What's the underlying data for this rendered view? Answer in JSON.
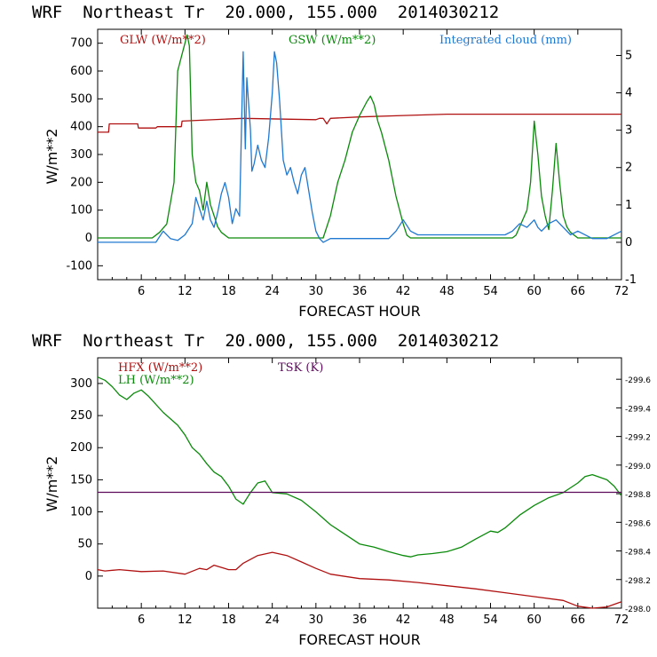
{
  "chart_data": [
    {
      "type": "line",
      "title": "WRF  Northeast Tr  20.000, 155.000  2014030212",
      "xlabel": "FORECAST HOUR",
      "ylabel": "W/m**2",
      "xlim": [
        0,
        72
      ],
      "ylim": [
        -150,
        750
      ],
      "y2lim": [
        -1,
        5.7
      ],
      "x_ticks": [
        6,
        12,
        18,
        24,
        30,
        36,
        42,
        48,
        54,
        60,
        66,
        72
      ],
      "y_ticks": [
        -100,
        0,
        100,
        200,
        300,
        400,
        500,
        600,
        700
      ],
      "y2_ticks": [
        -1,
        0,
        1,
        2,
        3,
        4,
        5
      ],
      "series": [
        {
          "name": "GLW (W/m**2)",
          "color": "#b01010",
          "axis": "left",
          "x": [
            0,
            1.5,
            1.6,
            5.5,
            5.6,
            8,
            8.2,
            11.5,
            11.6,
            20,
            30,
            30.5,
            31,
            31.5,
            32,
            36,
            42,
            48,
            54,
            60,
            66,
            72
          ],
          "y": [
            380,
            380,
            410,
            410,
            395,
            395,
            400,
            400,
            420,
            430,
            425,
            430,
            430,
            410,
            430,
            435,
            440,
            445,
            445,
            445,
            445,
            445
          ]
        },
        {
          "name": "GSW (W/m**2)",
          "color": "#0a8a0a",
          "axis": "left",
          "x": [
            0,
            7.5,
            8.5,
            9.5,
            10.5,
            11,
            11.5,
            12,
            12.3,
            12.6,
            13,
            13.5,
            14,
            14.5,
            15,
            15.5,
            16,
            16.5,
            17,
            18,
            18.5,
            19,
            30,
            31,
            32,
            33,
            34,
            35,
            36,
            37,
            37.5,
            38,
            38.5,
            39,
            40,
            41,
            42,
            42.5,
            43,
            57,
            57.5,
            58,
            59,
            59.5,
            60,
            60.5,
            61,
            61.5,
            62,
            62.5,
            63,
            63.5,
            64,
            64.5,
            65,
            66,
            72
          ],
          "y": [
            0,
            0,
            20,
            50,
            200,
            600,
            650,
            700,
            730,
            690,
            300,
            200,
            170,
            100,
            200,
            120,
            80,
            40,
            20,
            0,
            0,
            0,
            0,
            0,
            80,
            200,
            280,
            380,
            440,
            490,
            510,
            480,
            420,
            380,
            280,
            150,
            50,
            10,
            0,
            0,
            10,
            40,
            100,
            200,
            420,
            300,
            150,
            80,
            30,
            170,
            340,
            200,
            80,
            40,
            20,
            0,
            0
          ]
        },
        {
          "name": "Integrated cloud (mm)",
          "color": "#1f78d1",
          "axis": "right",
          "x": [
            0,
            5,
            8,
            9,
            10,
            11,
            12,
            13,
            13.5,
            14,
            14.5,
            15,
            15.5,
            16,
            16.5,
            17,
            17.5,
            18,
            18.5,
            19,
            19.5,
            20,
            20.3,
            20.5,
            21,
            21.2,
            21.5,
            22,
            22.5,
            23,
            23.5,
            24,
            24.3,
            24.6,
            25,
            25.5,
            26,
            26.5,
            27,
            27.5,
            28,
            28.5,
            29,
            29.5,
            30,
            30.5,
            31,
            32,
            36,
            40,
            41,
            42,
            43,
            44,
            48,
            54,
            56,
            57,
            58,
            59,
            60,
            60.5,
            61,
            62,
            63,
            64,
            65,
            66,
            68,
            70,
            72
          ],
          "y": [
            0,
            0,
            0,
            0.3,
            0.1,
            0.05,
            0.2,
            0.5,
            1.2,
            0.9,
            0.6,
            1.1,
            0.6,
            0.4,
            0.8,
            1.3,
            1.6,
            1.2,
            0.5,
            0.9,
            0.7,
            5.1,
            2.5,
            4.4,
            3.0,
            1.9,
            2.1,
            2.6,
            2.2,
            2.0,
            2.8,
            4.0,
            5.1,
            4.8,
            3.8,
            2.2,
            1.8,
            2.0,
            1.6,
            1.3,
            1.8,
            2.0,
            1.4,
            0.8,
            0.3,
            0.1,
            0,
            0.1,
            0.1,
            0.1,
            0.3,
            0.6,
            0.3,
            0.2,
            0.2,
            0.2,
            0.2,
            0.3,
            0.5,
            0.4,
            0.6,
            0.4,
            0.3,
            0.5,
            0.6,
            0.4,
            0.2,
            0.3,
            0.1,
            0.1,
            0.3
          ]
        }
      ]
    },
    {
      "type": "line",
      "title": "WRF  Northeast Tr  20.000, 155.000  2014030212",
      "xlabel": "FORECAST HOUR",
      "ylabel": "W/m**2",
      "xlim": [
        0,
        72
      ],
      "ylim": [
        -50,
        340
      ],
      "y2lim": [
        298.0,
        299.75
      ],
      "x_ticks": [
        6,
        12,
        18,
        24,
        30,
        36,
        42,
        48,
        54,
        60,
        66,
        72
      ],
      "y_ticks": [
        0,
        50,
        100,
        150,
        200,
        250,
        300
      ],
      "y2_ticks": [
        298.0,
        298.2,
        298.4,
        298.6,
        298.8,
        299.0,
        299.2,
        299.4,
        299.6
      ],
      "series": [
        {
          "name": "HFX (W/m**2)",
          "color": "#b01010",
          "axis": "left",
          "x": [
            0,
            1,
            3,
            6,
            9,
            12,
            14,
            15,
            16,
            18,
            19,
            20,
            22,
            24,
            26,
            28,
            30,
            32,
            36,
            40,
            44,
            48,
            52,
            56,
            60,
            64,
            66,
            68,
            70,
            72
          ],
          "y": [
            10,
            8,
            10,
            7,
            8,
            3,
            12,
            10,
            17,
            10,
            10,
            20,
            32,
            37,
            32,
            22,
            12,
            3,
            -4,
            -6,
            -10,
            -15,
            -20,
            -26,
            -32,
            -38,
            -47,
            -52,
            -48,
            -40
          ]
        },
        {
          "name": "LH (W/m**2)",
          "color": "#0a8a0a",
          "axis": "left",
          "x": [
            0,
            1,
            2,
            3,
            4,
            5,
            6,
            7,
            9,
            11,
            12,
            13,
            14,
            15,
            16,
            17,
            18,
            19,
            20,
            21,
            22,
            23,
            24,
            26,
            28,
            30,
            32,
            34,
            36,
            38,
            40,
            42,
            43,
            44,
            46,
            48,
            50,
            52,
            54,
            55,
            56,
            58,
            60,
            62,
            64,
            66,
            67,
            68,
            70,
            71,
            72
          ],
          "y": [
            310,
            305,
            295,
            282,
            275,
            285,
            290,
            280,
            255,
            235,
            220,
            200,
            190,
            175,
            162,
            155,
            140,
            120,
            112,
            130,
            145,
            148,
            130,
            128,
            118,
            100,
            80,
            65,
            50,
            45,
            38,
            32,
            30,
            33,
            35,
            38,
            45,
            58,
            70,
            68,
            75,
            95,
            110,
            122,
            130,
            145,
            155,
            158,
            150,
            140,
            125
          ]
        },
        {
          "name": "TSK (K)",
          "color": "#5c0a5c",
          "axis": "right",
          "x": [
            0,
            72
          ],
          "y": [
            298.81,
            298.81
          ]
        }
      ]
    }
  ]
}
